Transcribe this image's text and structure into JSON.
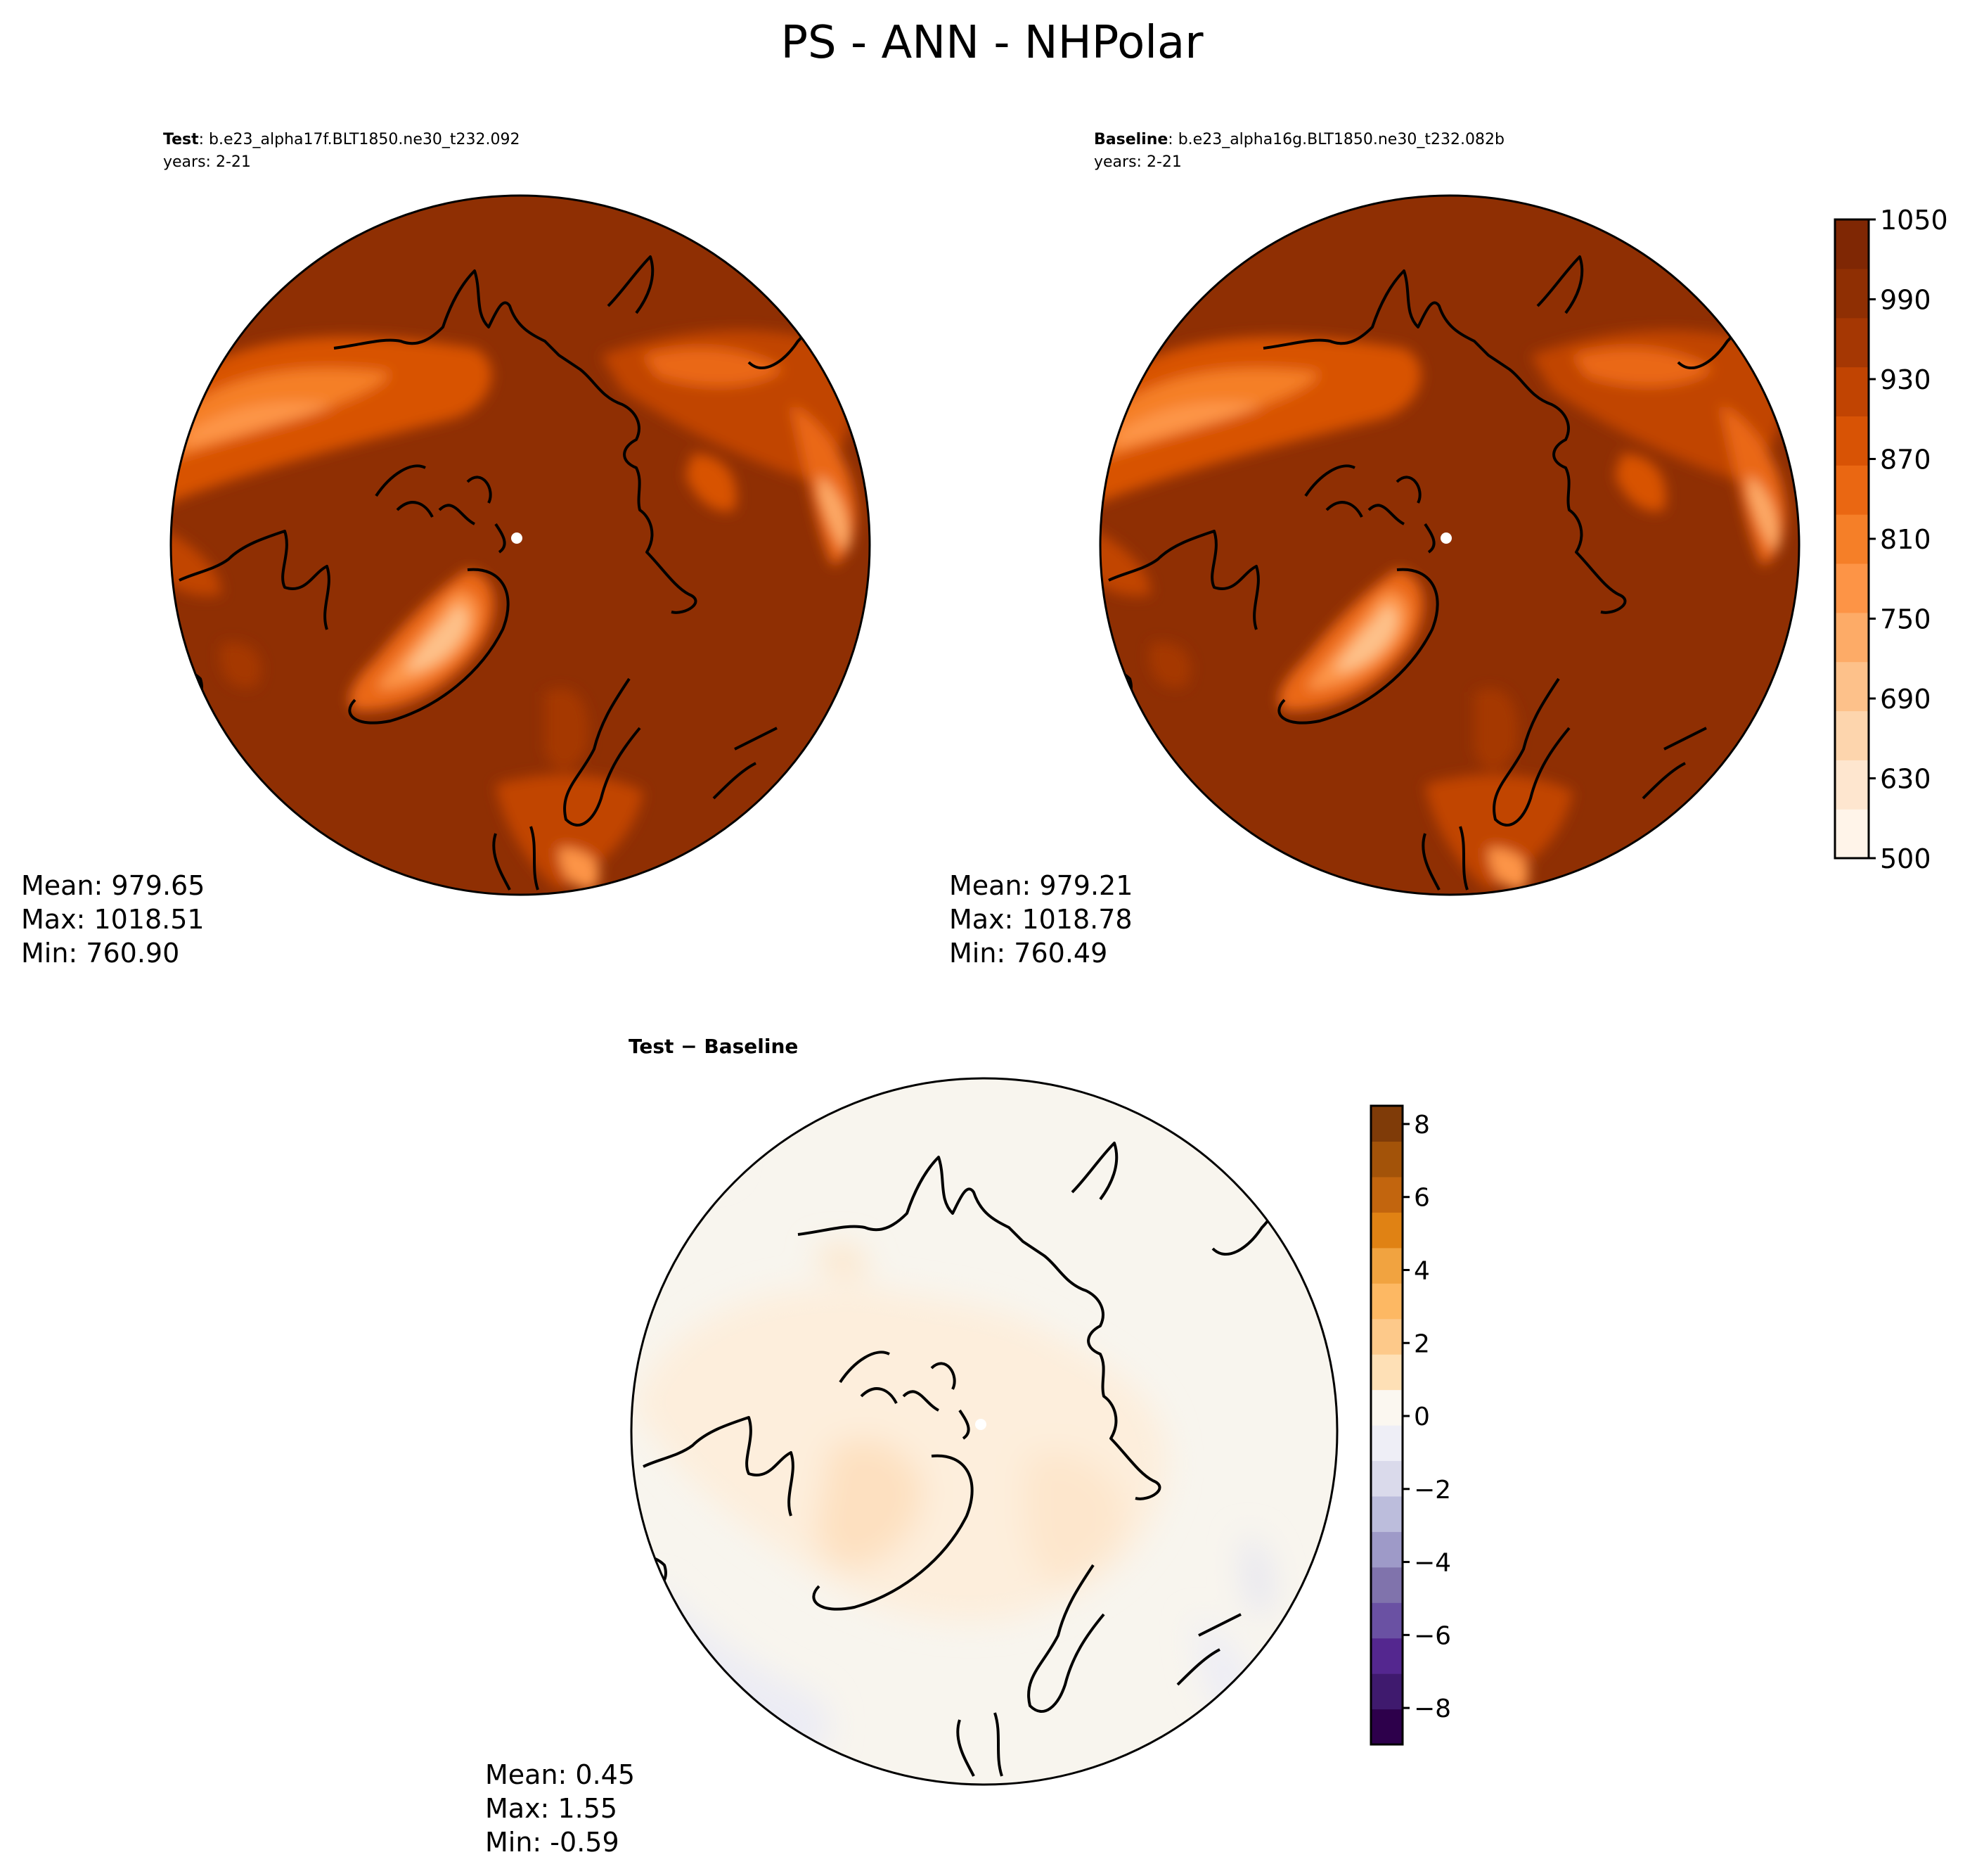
{
  "figure": {
    "title": "PS - ANN - NHPolar"
  },
  "colors": {
    "ps_levels": [
      "#fff4e9",
      "#fee6cf",
      "#fdd5ad",
      "#fdc18a",
      "#fdab67",
      "#fd9446",
      "#f57f28",
      "#ea6712",
      "#d85305",
      "#c14402",
      "#a53703",
      "#8f2f03",
      "#7f2704"
    ],
    "diff_levels": [
      "#2d004b",
      "#3f1a6e",
      "#54278f",
      "#6a51a3",
      "#8073ac",
      "#9e9ac8",
      "#bcbddc",
      "#dadaeb",
      "#eeeef6",
      "#fbf7f0",
      "#fee0b6",
      "#fdc98a",
      "#fdb863",
      "#f1a340",
      "#e08214",
      "#c2650e",
      "#a35309",
      "#7f3b08"
    ]
  },
  "panels": {
    "test": {
      "label": "Test",
      "case": ": b.e23_alpha17f.BLT1850.ne30_t232.092",
      "years": "years: 2-21",
      "stats": {
        "mean": "Mean: 979.65",
        "max": "Max: 1018.51",
        "min": "Min: 760.90"
      }
    },
    "baseline": {
      "label": "Baseline",
      "case": ": b.e23_alpha16g.BLT1850.ne30_t232.082b",
      "years": "years: 2-21",
      "stats": {
        "mean": "Mean: 979.21",
        "max": "Max: 1018.78",
        "min": "Min: 760.49"
      }
    },
    "diff": {
      "label_test": "Test",
      "label_sep": " − ",
      "label_base": "Baseline",
      "stats": {
        "mean": "Mean:  0.45",
        "max": "Max:  1.55",
        "min": "Min: -0.59"
      }
    }
  },
  "chart_data": [
    {
      "type": "heatmap",
      "name": "test",
      "stats": {
        "mean": 979.65,
        "max": 1018.51,
        "min": 760.9
      },
      "colorbar_ticks": [
        "500",
        "630",
        "690",
        "750",
        "810",
        "870",
        "930",
        "990",
        "1050"
      ]
    },
    {
      "type": "heatmap",
      "name": "baseline",
      "stats": {
        "mean": 979.21,
        "max": 1018.78,
        "min": 760.49
      }
    },
    {
      "type": "heatmap",
      "name": "diff",
      "stats": {
        "mean": 0.45,
        "max": 1.55,
        "min": -0.59
      },
      "colorbar_range": [
        -9,
        8.5
      ],
      "colorbar_ticks": [
        "8",
        "6",
        "4",
        "2",
        "0",
        "−2",
        "−4",
        "−6",
        "−8"
      ]
    }
  ]
}
